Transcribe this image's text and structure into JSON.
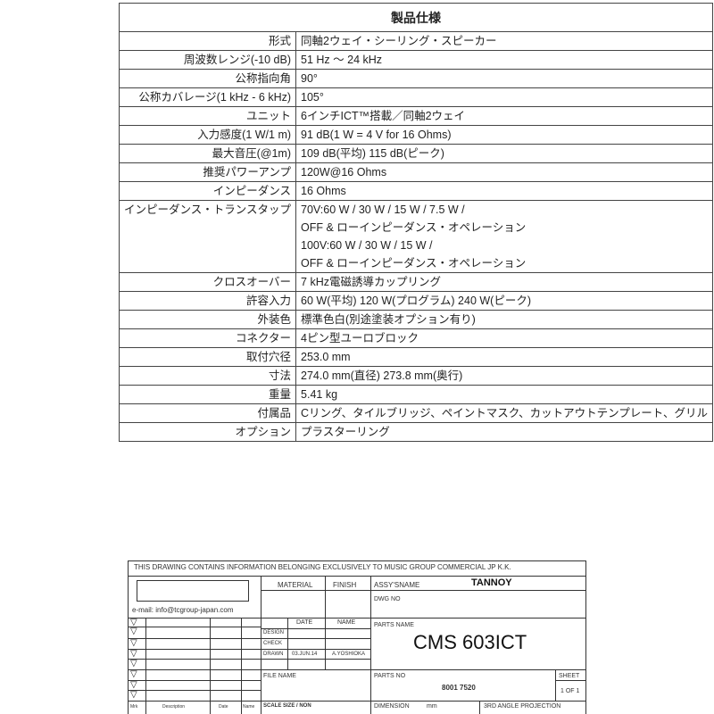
{
  "spec_table": {
    "title": "製品仕様",
    "rows": [
      {
        "label": "形式",
        "value": "同軸2ウェイ・シーリング・スピーカー"
      },
      {
        "label": "周波数レンジ(-10 dB)",
        "value": "51 Hz 〜 24 kHz"
      },
      {
        "label": "公称指向角",
        "value": "90°"
      },
      {
        "label": "公称カバレージ(1 kHz - 6 kHz)",
        "value": "105°"
      },
      {
        "label": "ユニット",
        "value": "6インチICT™搭載／同軸2ウェイ"
      },
      {
        "label": "入力感度(1 W/1 m)",
        "value": "91 dB(1 W = 4 V for 16 Ohms)"
      },
      {
        "label": "最大音圧(@1m)",
        "value": "109 dB(平均) 115 dB(ピーク)"
      },
      {
        "label": "推奨パワーアンプ",
        "value": "120W@16 Ohms"
      },
      {
        "label": "インピーダンス",
        "value": "16 Ohms"
      },
      {
        "label": "インピーダンス・トランスタップ",
        "lines": [
          "70V:60 W / 30 W / 15 W / 7.5 W /",
          "OFF & ローインピーダンス・オペレーション",
          "100V:60 W / 30 W / 15 W /",
          "OFF & ローインピーダンス・オペレーション"
        ]
      },
      {
        "label": "クロスオーバー",
        "value": "7 kHz電磁誘導カップリング"
      },
      {
        "label": "許容入力",
        "value": "60 W(平均) 120 W(プログラム) 240 W(ピーク)"
      },
      {
        "label": "外装色",
        "value": "標準色白(別途塗装オプション有り)"
      },
      {
        "label": "コネクター",
        "value": "4ピン型ユーロブロック"
      },
      {
        "label": "取付穴径",
        "value": "253.0 mm"
      },
      {
        "label": "寸法",
        "value": "274.0 mm(直径) 273.8 mm(奥行)"
      },
      {
        "label": "重量",
        "value": "5.41 kg"
      },
      {
        "label": "付属品",
        "value": "Cリング、タイルブリッジ、ペイントマスク、カットアウトテンプレート、グリル"
      },
      {
        "label": "オプション",
        "value": "プラスターリング"
      }
    ]
  },
  "title_block": {
    "notice": "THIS DRAWING CONTAINS INFORMATION BELONGING EXCLUSIVELY TO MUSIC GROUP COMMERCIAL JP K.K.",
    "email": "e-mail: info@tcgroup-japan.com",
    "material": "MATERIAL",
    "finish": "FINISH",
    "assy_label": "ASSY'SNAME",
    "assy_value": "TANNOY",
    "dwg_no": "DWG NO",
    "date": "DATE",
    "name": "NAME",
    "design": "DESIGN",
    "check": "CHECK",
    "drawn": "DRAWN",
    "drawn_date": "03.JUN.14",
    "drawn_name": "A.YOSHIOKA",
    "parts_name_label": "PARTS NAME",
    "parts_name": "CMS 603ICT",
    "file_name": "FILE NAME",
    "parts_no_label": "PARTS NO",
    "parts_no": "8001 7520",
    "sheet_label": "SHEET",
    "sheet_value": "1 OF 1",
    "rev_mrk": "Mrk",
    "rev_desc": "Description",
    "rev_date": "Date",
    "rev_name": "Name",
    "scale": "SCALE SIZE / NON",
    "dimension": "DIMENSION",
    "unit": "mm",
    "projection": "3RD ANGLE PROJECTION",
    "rev_symbol": "▽"
  }
}
